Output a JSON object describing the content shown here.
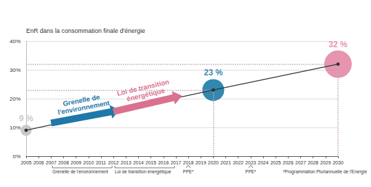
{
  "chart_data": {
    "type": "line",
    "y_label": "EnR dans la consommation finale d'énergie",
    "x": [
      2005,
      2020,
      2030
    ],
    "values": [
      9,
      23,
      32
    ],
    "value_labels": [
      "9 %",
      "23 %",
      "32 %"
    ],
    "color": "#333333",
    "colors": [
      "#c4c4c4",
      "#1c7ba5",
      "#e48aa6"
    ],
    "marker": "circle",
    "data_labels": true,
    "grid": true,
    "xlim": [
      2005,
      2030
    ],
    "xticks": [
      2005,
      2006,
      2007,
      2008,
      2009,
      2010,
      2011,
      2012,
      2013,
      2014,
      2015,
      2016,
      2017,
      2018,
      2019,
      2020,
      2021,
      2022,
      2023,
      2024,
      2025,
      2026,
      2027,
      2028,
      2029,
      2030
    ],
    "ylim": [
      0,
      40
    ],
    "yticks": [
      {
        "value": 0,
        "label": "0%"
      },
      {
        "value": 10,
        "label": "10%"
      },
      {
        "value": 20,
        "label": "20%"
      },
      {
        "value": 30,
        "label": "30%"
      },
      {
        "value": 40,
        "label": "40%"
      }
    ],
    "annotations": [
      {
        "text": "Grenelle de l'environnement",
        "from": [
          2007,
          11.5
        ],
        "to": [
          2012.5,
          16
        ],
        "color": "#1f78a8"
      },
      {
        "text": "Loi de transition énergétique",
        "from": [
          2012,
          15.5
        ],
        "to": [
          2017.5,
          21
        ],
        "color": "#d9718f"
      }
    ],
    "periods": [
      {
        "label": "Grenelle de l'environnement",
        "start": 2007,
        "end": 2012
      },
      {
        "label": "Loi de transition énergétique",
        "start": 2012,
        "end": 2017
      },
      {
        "label": "PPE*",
        "start": 2018,
        "end": 2018
      },
      {
        "label": "PPE*",
        "start": 2023,
        "end": 2023
      }
    ],
    "footnote": "*Programmation Pluriannuelle de l'Energie"
  }
}
